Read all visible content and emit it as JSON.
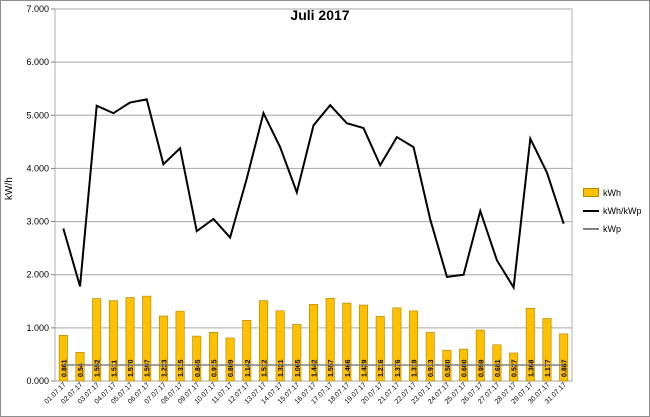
{
  "chart_data": {
    "type": "bar+line",
    "title": "Juli 2017",
    "ylabel": "kW/h",
    "xlabel": "",
    "ylim": [
      0,
      7
    ],
    "yticks": [
      "0.000",
      "1.000",
      "2.000",
      "3.000",
      "4.000",
      "5.000",
      "6.000",
      "7.000"
    ],
    "grid": true,
    "legend_position": "right",
    "categories": [
      "01.07.17",
      "02.07.17",
      "03.07.17",
      "04.07.17",
      "05.07.17",
      "06.07.17",
      "07.07.17",
      "08.07.17",
      "09.07.17",
      "10.07.17",
      "11.07.17",
      "12.07.17",
      "13.07.17",
      "14.07.17",
      "15.07.17",
      "16.07.17",
      "17.07.17",
      "18.07.17",
      "19.07.17",
      "20.07.17",
      "21.07.17",
      "22.07.17",
      "23.07.17",
      "24.07.17",
      "25.07.17",
      "26.07.17",
      "27.07.17",
      "28.07.17",
      "29.07.17",
      "30.07.17",
      "31.07.17"
    ],
    "series": [
      {
        "name": "kWh",
        "type": "bar",
        "color": "#ffc000",
        "values": [
          0.861,
          0.54,
          1.552,
          1.511,
          1.57,
          1.597,
          1.223,
          1.315,
          0.845,
          0.915,
          0.809,
          1.142,
          1.512,
          1.321,
          1.065,
          1.442,
          1.557,
          1.466,
          1.429,
          1.216,
          1.376,
          1.319,
          0.913,
          0.58,
          0.6,
          0.959,
          0.681,
          0.527,
          1.368,
          1.177,
          0.887
        ],
        "labels": [
          "0.861",
          "0.54",
          "1.552",
          "1.511",
          "1.570",
          "1.597",
          "1.223",
          "1.315",
          "0.845",
          "0.915",
          "0.809",
          "1.142",
          "1.512",
          "1.321",
          "1.065",
          "1.442",
          "1.557",
          "1.466",
          "1.429",
          "1.216",
          "1.376",
          "1.319",
          "0.913",
          "0.580",
          "0.600",
          "0.959",
          "0.681",
          "0.527",
          "1.368",
          "1.177",
          "0.887"
        ]
      },
      {
        "name": "kWh/kWp",
        "type": "line",
        "color": "#000000",
        "values": [
          2.87,
          1.78,
          5.18,
          5.04,
          5.24,
          5.3,
          4.08,
          4.38,
          2.82,
          3.05,
          2.7,
          3.81,
          5.04,
          4.4,
          3.55,
          4.81,
          5.19,
          4.85,
          4.76,
          4.06,
          4.59,
          4.4,
          3.04,
          1.96,
          2.0,
          3.2,
          2.27,
          1.76,
          4.56,
          3.92,
          2.96
        ]
      },
      {
        "name": "kWp",
        "type": "line",
        "color": "#808080",
        "values": [
          0.3,
          0.3,
          0.3,
          0.3,
          0.3,
          0.3,
          0.3,
          0.3,
          0.3,
          0.3,
          0.3,
          0.3,
          0.3,
          0.3,
          0.3,
          0.3,
          0.3,
          0.3,
          0.3,
          0.3,
          0.3,
          0.3,
          0.3,
          0.3,
          0.3,
          0.3,
          0.3,
          0.3,
          0.3,
          0.3,
          0.3
        ]
      }
    ]
  }
}
